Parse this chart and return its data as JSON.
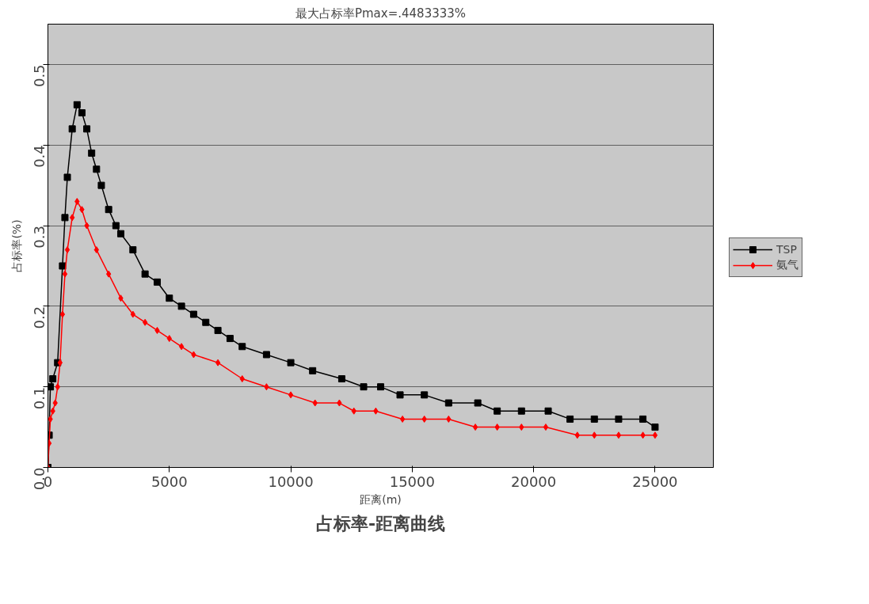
{
  "chart_data": {
    "type": "line",
    "title": "占标率-距离曲线",
    "subtitle": "最大占标率Pmax=.4483333%",
    "xlabel": "距离(m)",
    "ylabel": "占标率(%)",
    "xlim": [
      0,
      27400
    ],
    "ylim": [
      0,
      0.55
    ],
    "xticks": [
      0,
      5000,
      10000,
      15000,
      20000,
      25000
    ],
    "yticks": [
      {
        "value": 0,
        "label": "0.0"
      },
      {
        "value": 0.1,
        "label": "0.1"
      },
      {
        "value": 0.2,
        "label": "0.2"
      },
      {
        "value": 0.3,
        "label": "0.3"
      },
      {
        "value": 0.4,
        "label": "0.4"
      },
      {
        "value": 0.5,
        "label": "0.5"
      }
    ],
    "grid": "y",
    "legend": "right",
    "line_style": "solid",
    "series": [
      {
        "name": "TSP",
        "color": "#000000",
        "marker": "square",
        "x": [
          0,
          50,
          100,
          200,
          400,
          600,
          700,
          800,
          1000,
          1200,
          1400,
          1600,
          1800,
          2000,
          2200,
          2500,
          2800,
          3000,
          3500,
          4000,
          4500,
          5000,
          5500,
          6000,
          6500,
          7000,
          7500,
          8000,
          9000,
          10000,
          10900,
          12100,
          13000,
          13700,
          14500,
          15500,
          16500,
          17700,
          18500,
          19500,
          20600,
          21500,
          22500,
          23500,
          24500,
          25000
        ],
        "values": [
          0,
          0.04,
          0.1,
          0.11,
          0.13,
          0.25,
          0.31,
          0.36,
          0.42,
          0.45,
          0.44,
          0.42,
          0.39,
          0.37,
          0.35,
          0.32,
          0.3,
          0.29,
          0.27,
          0.24,
          0.23,
          0.21,
          0.2,
          0.19,
          0.18,
          0.17,
          0.16,
          0.15,
          0.14,
          0.13,
          0.12,
          0.11,
          0.1,
          0.1,
          0.09,
          0.09,
          0.08,
          0.08,
          0.07,
          0.07,
          0.07,
          0.06,
          0.06,
          0.06,
          0.06,
          0.05
        ]
      },
      {
        "name": "氨气",
        "color": "#ff0000",
        "marker": "diamond",
        "x": [
          0,
          50,
          100,
          200,
          300,
          400,
          500,
          600,
          700,
          800,
          1000,
          1200,
          1400,
          1600,
          2000,
          2500,
          3000,
          3500,
          4000,
          4500,
          5000,
          5500,
          6000,
          7000,
          8000,
          9000,
          10000,
          11000,
          12000,
          12600,
          13500,
          14600,
          15500,
          16500,
          17600,
          18500,
          19500,
          20500,
          21800,
          22500,
          23500,
          24500,
          25000
        ],
        "values": [
          0,
          0.03,
          0.06,
          0.07,
          0.08,
          0.1,
          0.13,
          0.19,
          0.24,
          0.27,
          0.31,
          0.33,
          0.32,
          0.3,
          0.27,
          0.24,
          0.21,
          0.19,
          0.18,
          0.17,
          0.16,
          0.15,
          0.14,
          0.13,
          0.11,
          0.1,
          0.09,
          0.08,
          0.08,
          0.07,
          0.07,
          0.06,
          0.06,
          0.06,
          0.05,
          0.05,
          0.05,
          0.05,
          0.04,
          0.04,
          0.04,
          0.04,
          0.04
        ]
      }
    ]
  }
}
